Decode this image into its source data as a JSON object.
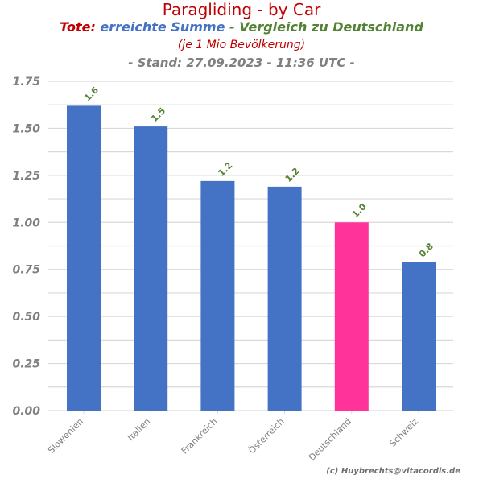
{
  "header": {
    "title": "Paragliding - by Car",
    "subtitle_part1": "Tote:",
    "subtitle_part2": "erreichte Summe",
    "subtitle_part3": "- Vergleich zu Deutschland",
    "subtitle_line2": "(je 1 Mio Bevölkerung)",
    "subtitle_line3": "- Stand: 27.09.2023 - 11:36 UTC -"
  },
  "footer": {
    "credit": "(c) Huybrechts@vitacordis.de"
  },
  "colors": {
    "title": "#c00000",
    "subtitle_red": "#c00000",
    "subtitle_blue": "#4472c4",
    "subtitle_green": "#548235",
    "bar_default": "#4472c4",
    "bar_highlight": "#ff3399",
    "value_label": "#548235",
    "axis_text": "#808080",
    "grid": "#d9d9d9"
  },
  "chart_data": {
    "type": "bar",
    "categories": [
      "Slowenien",
      "Italien",
      "Frankreich",
      "Österreich",
      "Deutschland",
      "Schweiz"
    ],
    "values": [
      1.62,
      1.51,
      1.22,
      1.19,
      1.0,
      0.79
    ],
    "value_labels": [
      "1.6",
      "1.5",
      "1.2",
      "1.2",
      "1.0",
      "0.8"
    ],
    "highlight": "Deutschland",
    "ylim": [
      0,
      1.75
    ],
    "yticks": [
      0,
      0.25,
      0.5,
      0.75,
      1.0,
      1.25,
      1.5,
      1.75
    ],
    "ytick_labels": [
      "0.00",
      "0.25",
      "0.50",
      "0.75",
      "1.00",
      "1.25",
      "1.50",
      "1.75"
    ],
    "grid": true,
    "xlabel": "",
    "ylabel": ""
  }
}
